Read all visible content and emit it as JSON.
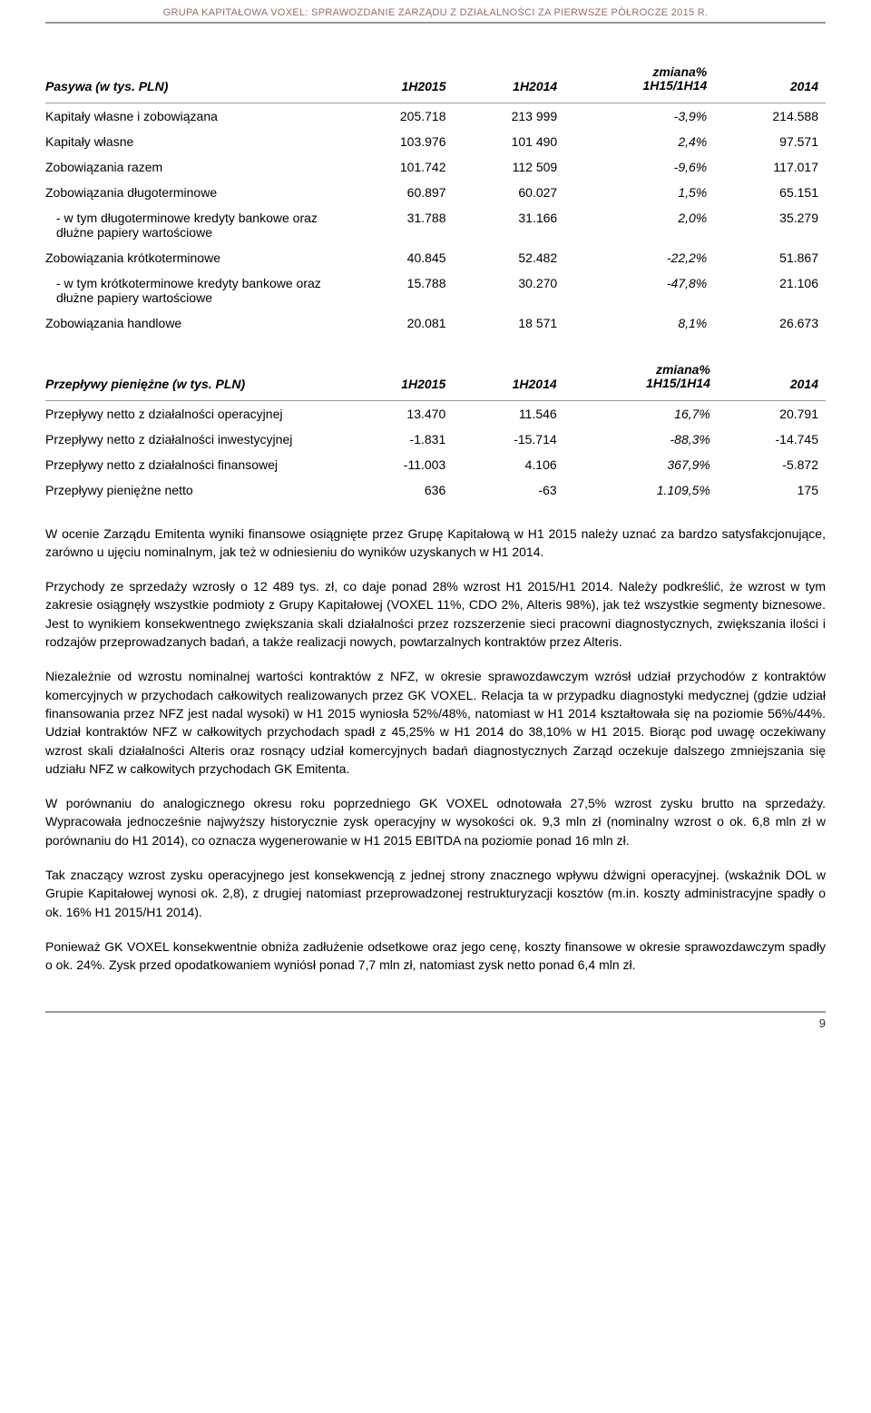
{
  "header": {
    "text": "GRUPA KAPITAŁOWA VOXEL: SPRAWOZDANIE ZARZĄDU Z DZIAŁALNOŚCI ZA PIERWSZE PÓŁROCZE 2015 R."
  },
  "table1": {
    "headers": {
      "label": "Pasywa (w tys. PLN)",
      "c1": "1H2015",
      "c2": "1H2014",
      "c3a": "zmiana%",
      "c3b": "1H15/1H14",
      "c4": "2014"
    },
    "rows": [
      {
        "label": "Kapitały własne i zobowiązana",
        "c1": "205.718",
        "c2": "213 999",
        "c3": "-3,9%",
        "c4": "214.588",
        "indent": false
      },
      {
        "label": "Kapitały własne",
        "c1": "103.976",
        "c2": "101 490",
        "c3": "2,4%",
        "c4": "97.571",
        "indent": false
      },
      {
        "label": "Zobowiązania razem",
        "c1": "101.742",
        "c2": "112 509",
        "c3": "-9,6%",
        "c4": "117.017",
        "indent": false
      },
      {
        "label": "Zobowiązania długoterminowe",
        "c1": "60.897",
        "c2": "60.027",
        "c3": "1,5%",
        "c4": "65.151",
        "indent": false
      },
      {
        "label": " - w tym długoterminowe kredyty bankowe oraz dłużne papiery wartościowe",
        "c1": "31.788",
        "c2": "31.166",
        "c3": "2,0%",
        "c4": "35.279",
        "indent": true
      },
      {
        "label": "Zobowiązania krótkoterminowe",
        "c1": "40.845",
        "c2": "52.482",
        "c3": "-22,2%",
        "c4": "51.867",
        "indent": false
      },
      {
        "label": " - w tym krótkoterminowe kredyty bankowe oraz dłużne papiery wartościowe",
        "c1": "15.788",
        "c2": "30.270",
        "c3": "-47,8%",
        "c4": "21.106",
        "indent": true
      },
      {
        "label": "Zobowiązania handlowe",
        "c1": "20.081",
        "c2": "18 571",
        "c3": "8,1%",
        "c4": "26.673",
        "indent": false
      }
    ]
  },
  "table2": {
    "headers": {
      "label": "Przepływy pieniężne (w tys. PLN)",
      "c1": "1H2015",
      "c2": "1H2014",
      "c3a": "zmiana%",
      "c3b": "1H15/1H14",
      "c4": "2014"
    },
    "rows": [
      {
        "label": "Przepływy netto z działalności operacyjnej",
        "c1": "13.470",
        "c2": "11.546",
        "c3": "16,7%",
        "c4": "20.791"
      },
      {
        "label": "Przepływy netto z działalności inwestycyjnej",
        "c1": "-1.831",
        "c2": "-15.714",
        "c3": "-88,3%",
        "c4": "-14.745"
      },
      {
        "label": "Przepływy netto z działalności finansowej",
        "c1": "-11.003",
        "c2": "4.106",
        "c3": "367,9%",
        "c4": "-5.872"
      },
      {
        "label": "Przepływy pieniężne netto",
        "c1": "636",
        "c2": "-63",
        "c3": "1.109,5%",
        "c4": "175"
      }
    ]
  },
  "paragraphs": {
    "p1": "W ocenie Zarządu Emitenta wyniki finansowe osiągnięte przez Grupę Kapitałową w H1 2015 należy uznać za bardzo satysfakcjonujące, zarówno u ujęciu nominalnym, jak też w odniesieniu do wyników uzyskanych w H1 2014.",
    "p2": "Przychody ze sprzedaży wzrosły o 12 489 tys. zł, co daje ponad 28% wzrost H1 2015/H1 2014. Należy podkreślić, że wzrost w tym zakresie osiągnęły wszystkie podmioty z Grupy Kapitałowej (VOXEL 11%, CDO 2%, Alteris 98%), jak też wszystkie segmenty biznesowe. Jest to wynikiem konsekwentnego zwiększania skali działalności przez rozszerzenie sieci pracowni diagnostycznych, zwiększania ilości i rodzajów przeprowadzanych badań, a także realizacji nowych, powtarzalnych kontraktów przez Alteris.",
    "p3": "Niezależnie od wzrostu nominalnej wartości kontraktów z NFZ, w okresie sprawozdawczym wzrósł udział przychodów z kontraktów komercyjnych w przychodach całkowitych realizowanych przez GK VOXEL. Relacja ta w przypadku diagnostyki medycznej (gdzie udział finansowania przez NFZ jest nadal wysoki) w H1 2015 wyniosła 52%/48%, natomiast w H1 2014 kształtowała się na poziomie 56%/44%. Udział kontraktów NFZ w całkowitych przychodach spadł z 45,25% w H1 2014 do 38,10% w H1 2015. Biorąc pod uwagę oczekiwany wzrost skali działalności Alteris oraz rosnący udział komercyjnych badań diagnostycznych Zarząd oczekuje dalszego zmniejszania się udziału NFZ w całkowitych przychodach GK Emitenta.",
    "p4": "W porównaniu do analogicznego okresu roku poprzedniego GK VOXEL odnotowała 27,5% wzrost zysku brutto na sprzedaży. Wypracowała jednocześnie najwyższy historycznie zysk operacyjny w wysokości ok. 9,3 mln zł (nominalny wzrost o ok. 6,8 mln zł w porównaniu do H1 2014), co oznacza wygenerowanie w H1 2015 EBITDA na poziomie ponad 16 mln zł.",
    "p5": "Tak znaczący wzrost zysku operacyjnego jest konsekwencją z jednej strony znacznego wpływu dźwigni operacyjnej. (wskaźnik DOL w Grupie Kapitałowej wynosi ok. 2,8), z drugiej natomiast przeprowadzonej restrukturyzacji kosztów (m.in. koszty administracyjne spadły o ok. 16% H1 2015/H1 2014).",
    "p6": "Ponieważ GK VOXEL konsekwentnie obniża zadłużenie odsetkowe oraz jego cenę, koszty finansowe w okresie sprawozdawczym spadły o ok. 24%. Zysk przed opodatkowaniem wyniósł ponad 7,7 mln zł, natomiast zysk netto ponad 6,4 mln zł."
  },
  "footer": {
    "page": "9"
  }
}
